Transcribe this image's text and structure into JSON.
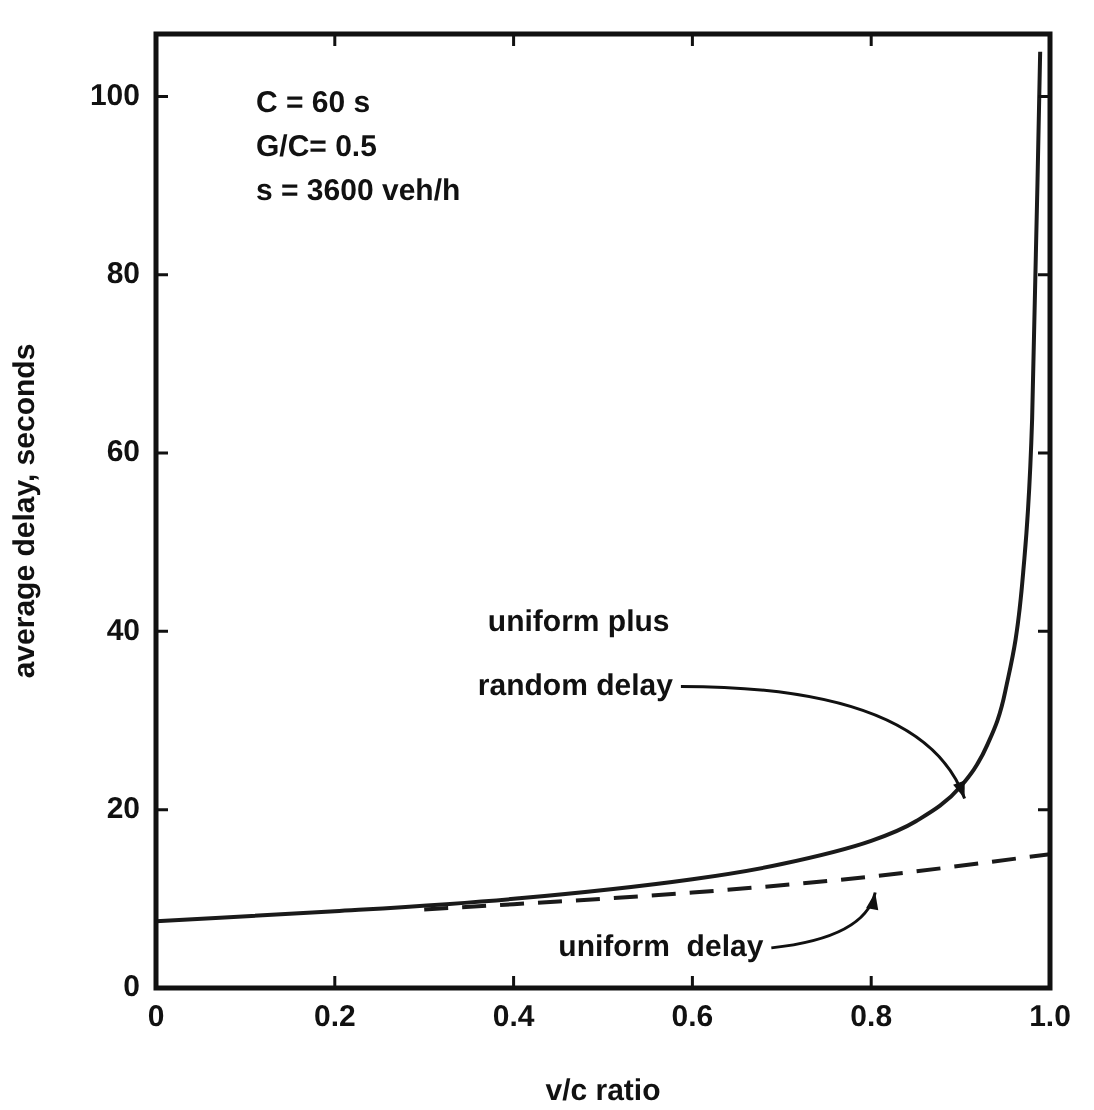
{
  "chart_data": {
    "type": "line",
    "xlabel": "v/c ratio",
    "ylabel": "average delay, seconds",
    "annotations": [
      "C = 60 s",
      "G/C= 0.5",
      "s = 3600 veh/h"
    ],
    "xlim": [
      0,
      1
    ],
    "xticks": [
      0,
      0.2,
      0.4,
      0.6,
      0.8,
      {
        "value": 1,
        "label": "1.0"
      }
    ],
    "ylim": [
      0,
      107
    ],
    "yticks": [
      0,
      20,
      40,
      60,
      80,
      100
    ],
    "marker": "none",
    "series": [
      {
        "name": "uniform plus random delay",
        "color": "#1a1a1a",
        "line_style": "solid",
        "x": [
          0,
          0.2,
          0.4,
          0.6,
          0.7,
          0.8,
          0.85,
          0.9,
          0.93,
          0.95,
          0.97,
          0.98,
          0.989
        ],
        "values": [
          7.5,
          8.6,
          10,
          12.2,
          13.9,
          16.5,
          18.7,
          22.6,
          27.3,
          33.3,
          46.6,
          63.8,
          105
        ]
      },
      {
        "name": "uniform delay",
        "color": "#1a1a1a",
        "line_style": "dashed",
        "x": [
          0.3,
          0.4,
          0.6,
          0.8,
          1
        ],
        "values": [
          8.8,
          9.4,
          10.7,
          12.5,
          15
        ]
      }
    ]
  }
}
